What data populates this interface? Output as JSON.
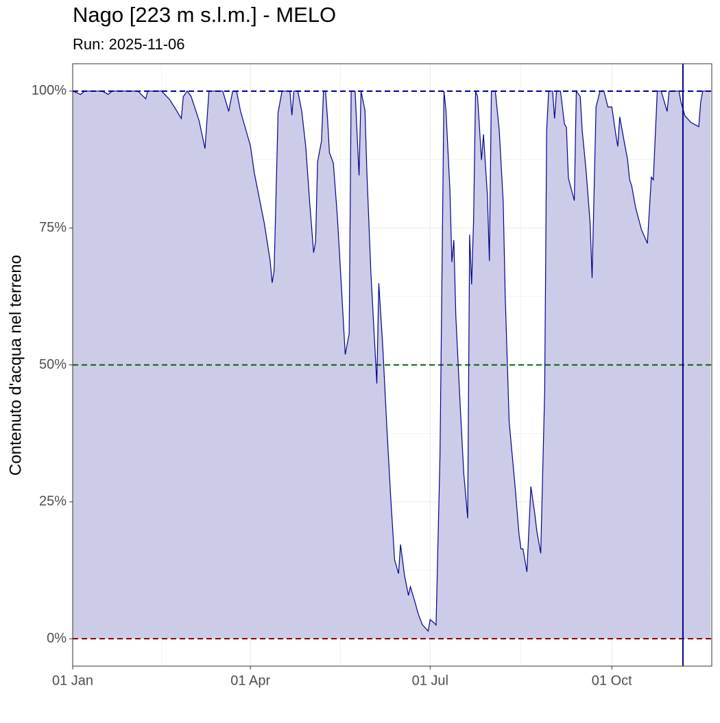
{
  "chart_data": {
    "type": "area",
    "title": "Nago [223 m s.l.m.] - MELO",
    "subtitle": "Run: 2025-11-06",
    "y_label": "Contenuto d'acqua nel terreno",
    "color": "#00008b",
    "fill_color": "#ccccE8",
    "grid": true,
    "xlim": [
      1,
      324.6
    ],
    "ylim": [
      -5,
      105
    ],
    "xticks": [
      {
        "value": 1,
        "label": "01 Jan"
      },
      {
        "value": 91,
        "label": "01 Apr"
      },
      {
        "value": 182,
        "label": "01 Jul"
      },
      {
        "value": 274,
        "label": "01 Oct"
      }
    ],
    "yticks": [
      {
        "value": 0,
        "label": "0%"
      },
      {
        "value": 25,
        "label": "25%"
      },
      {
        "value": 50,
        "label": "50%"
      },
      {
        "value": 75,
        "label": "75%"
      },
      {
        "value": 100,
        "label": "100%"
      }
    ],
    "hlines": [
      {
        "value": 100,
        "color": "#00008b"
      },
      {
        "value": 50,
        "color": "#006400"
      },
      {
        "value": 0,
        "color": "#8b0000"
      }
    ],
    "vline": {
      "value": 310,
      "color": "#00008b"
    },
    "x": [
      1,
      5,
      7,
      16,
      19,
      21,
      34,
      38,
      39,
      46,
      50,
      53,
      56,
      57,
      59,
      61,
      65,
      68,
      70,
      77,
      80,
      82,
      84,
      86,
      88,
      91,
      93,
      98,
      101,
      102,
      103,
      105,
      107,
      111,
      112,
      113,
      115,
      117,
      119,
      121,
      123,
      124,
      125,
      127,
      128,
      129,
      130,
      131,
      133,
      135,
      137,
      139,
      141,
      142,
      144,
      146,
      147,
      149,
      150,
      152,
      155,
      156,
      158,
      160,
      162,
      164,
      166,
      167,
      169,
      171,
      172,
      174,
      176,
      178,
      181,
      182,
      184,
      185,
      187,
      189,
      190,
      192,
      193,
      194,
      195,
      197,
      199,
      201,
      202,
      203,
      204,
      205,
      206,
      208,
      209,
      211,
      212,
      213,
      215,
      217,
      219,
      220,
      222,
      225,
      227,
      228,
      229,
      231,
      233,
      235,
      236,
      238,
      240,
      241,
      242,
      244,
      245,
      246,
      248,
      250,
      251,
      252,
      255,
      256,
      258,
      259,
      261,
      263,
      264,
      266,
      268,
      270,
      272,
      274,
      276,
      277,
      278,
      280,
      282,
      283,
      284,
      286,
      289,
      292,
      294,
      295,
      297,
      299,
      302,
      303,
      308,
      309,
      311,
      314,
      318,
      319,
      320,
      324
    ],
    "values": [
      100,
      99.4,
      100,
      100,
      99.4,
      100,
      100,
      98.6,
      100,
      100,
      98.5,
      96.8,
      95,
      99,
      100,
      99,
      94.6,
      89.5,
      100,
      100,
      96.3,
      100,
      100,
      96.3,
      93.8,
      90,
      85,
      75.9,
      69,
      65,
      67.2,
      96.1,
      100,
      100,
      95.6,
      100,
      100,
      96.3,
      89.9,
      79.7,
      70.5,
      72.5,
      87.1,
      90.9,
      100,
      100,
      95.2,
      88.8,
      86.8,
      77.2,
      64.7,
      51.9,
      55.7,
      100,
      100,
      84.6,
      100,
      96.5,
      84.9,
      66.8,
      46.6,
      64.9,
      53.4,
      39.1,
      26,
      14.4,
      11.9,
      17.2,
      11.6,
      7.9,
      9.5,
      7.1,
      4.5,
      2.6,
      1.4,
      3.5,
      2.9,
      2.5,
      33.7,
      100,
      96.5,
      82.1,
      68.8,
      72.8,
      59,
      44.1,
      30.3,
      22,
      73.8,
      64.7,
      76.5,
      100,
      99,
      87.4,
      92.1,
      80.9,
      69,
      100,
      100,
      92.8,
      79.7,
      62.8,
      39.7,
      27.8,
      19.1,
      16.4,
      16.4,
      12.2,
      27.8,
      22.8,
      19.7,
      15.6,
      45.3,
      92.8,
      100,
      100,
      95,
      100,
      100,
      94,
      93.4,
      84.1,
      80,
      100,
      99,
      92.8,
      85.3,
      75.9,
      65.9,
      97.1,
      100,
      100,
      97.1,
      97.1,
      92.1,
      89.9,
      95.3,
      91.3,
      87.4,
      83.8,
      82.8,
      78.8,
      74.7,
      72.2,
      84.3,
      83.8,
      100,
      100,
      96.3,
      100,
      100,
      98,
      95.5,
      94.3,
      93.5,
      98,
      100,
      100
    ]
  }
}
